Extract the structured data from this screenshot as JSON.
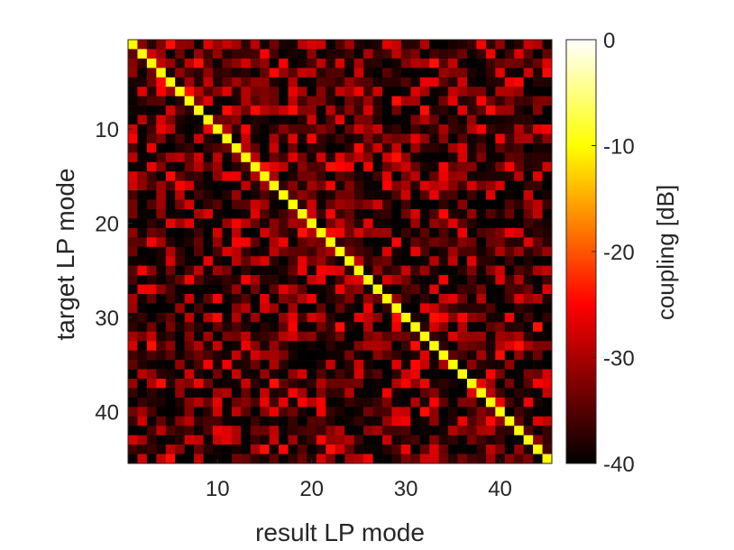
{
  "chart_data": {
    "type": "heatmap",
    "title": "",
    "xlabel": "result LP mode",
    "ylabel": "target LP mode",
    "x_range": [
      1,
      45
    ],
    "y_range": [
      1,
      45
    ],
    "y_direction": "reversed",
    "x_ticks": [
      "10",
      "20",
      "30",
      "40"
    ],
    "y_ticks": [
      "10",
      "20",
      "30",
      "40"
    ],
    "colormap": "hot",
    "colorbar": {
      "label": "coupling [dB]",
      "range": [
        -40,
        0
      ],
      "ticks": [
        "0",
        "-10",
        "-20",
        "-30",
        "-40"
      ]
    },
    "diagonal_value_db": -10,
    "off_diagonal_range_db": [
      -40,
      -24
    ],
    "grid": false
  }
}
